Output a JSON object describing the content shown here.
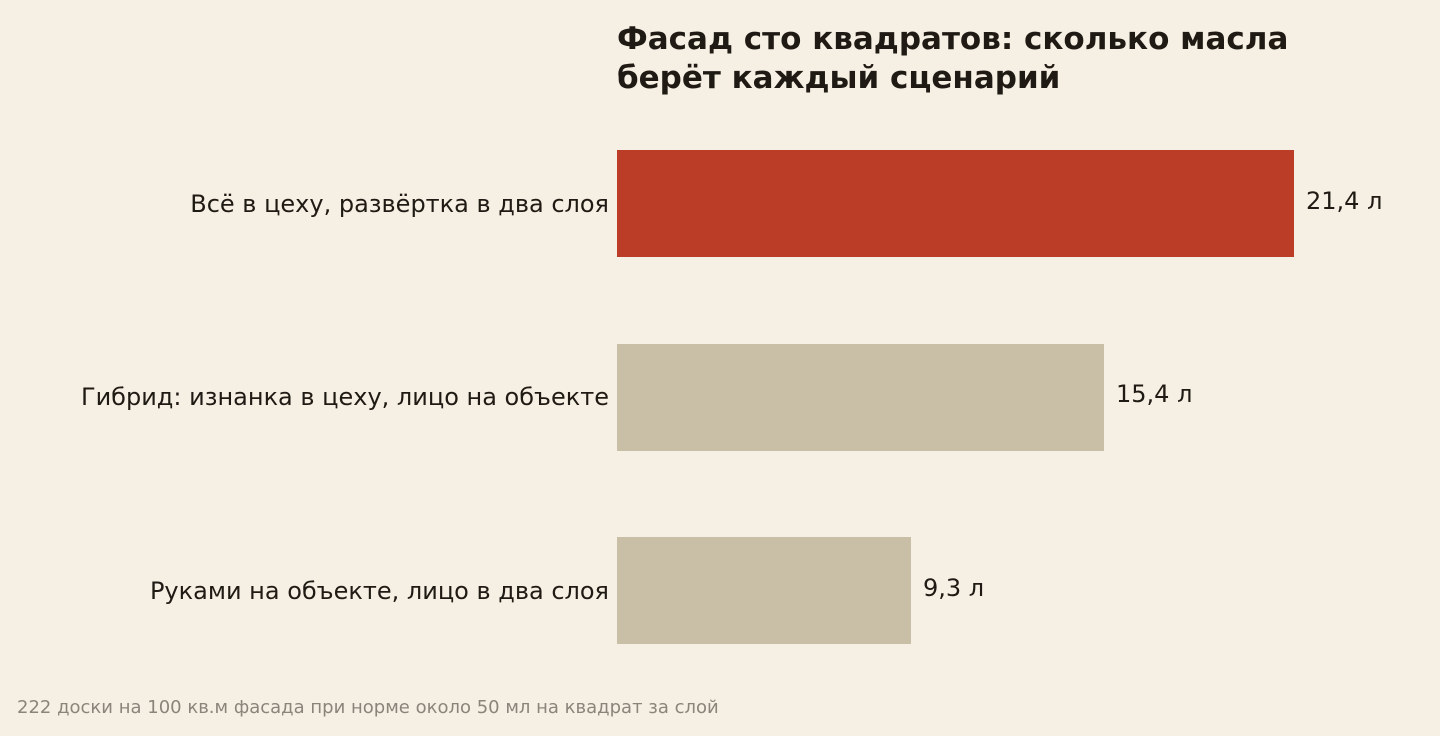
{
  "chart_data": {
    "type": "bar",
    "orientation": "horizontal",
    "title": "Фасад сто квадратов: сколько масла\nберёт каждый сценарий",
    "categories": [
      "Всё в цеху, развёртка в два слоя",
      "Гибрид: изнанка в цеху, лицо на объекте",
      "Руками на объекте, лицо в два слоя"
    ],
    "values": [
      21.4,
      15.4,
      9.3
    ],
    "value_labels": [
      "21,4 л",
      "15,4 л",
      "9,3 л"
    ],
    "bar_colors": [
      "#bc3d27",
      "#c9bfa7",
      "#c9bfa7"
    ],
    "xlim": [
      0,
      21.4
    ],
    "grid": false,
    "legend": "none",
    "footnote": "222 доски на 100 кв.м фасада при норме около 50 мл на квадрат за слой"
  },
  "colors": {
    "background": "#f6f0e4",
    "text": "#1f1b14",
    "muted_text": "#8a847a"
  }
}
